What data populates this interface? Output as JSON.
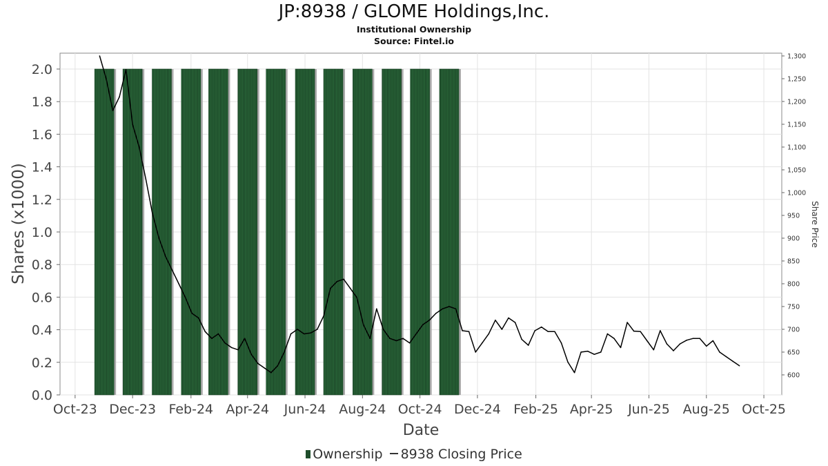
{
  "chart_data": {
    "type": "bar",
    "title": "JP:8938 / GLOME Holdings,Inc.",
    "subtitle": "Institutional Ownership",
    "source": "Source: Fintel.io",
    "xlabel": "Date",
    "ylabel": "Shares (x1000)",
    "y2label": "Share Price",
    "x_ticks": [
      "Oct-23",
      "Dec-23",
      "Feb-24",
      "Apr-24",
      "Jun-24",
      "Aug-24",
      "Oct-24",
      "Dec-24",
      "Feb-25",
      "Apr-25",
      "Jun-25",
      "Aug-25",
      "Oct-25"
    ],
    "y_ticks": [
      "0.0",
      "0.2",
      "0.4",
      "0.6",
      "0.8",
      "1.0",
      "1.2",
      "1.4",
      "1.6",
      "1.8",
      "2.0"
    ],
    "y2_ticks": [
      "600",
      "650",
      "700",
      "750",
      "800",
      "850",
      "900",
      "950",
      "1,000",
      "1,050",
      "1,100",
      "1,150",
      "1,200",
      "1,250",
      "1,300"
    ],
    "ylim": [
      0,
      2.1
    ],
    "y2lim": [
      585,
      1300
    ],
    "xlim": [
      "2023-09-15",
      "2025-10-20"
    ],
    "grid": true,
    "legend_position": "bottom",
    "colors": {
      "ownership": "#1e4d2b",
      "price": "#000000",
      "shadow": "#aaaaaa"
    },
    "series": [
      {
        "name": "Ownership",
        "kind": "bar",
        "x": [
          "2023-11-01",
          "2023-12-01",
          "2024-01-01",
          "2024-02-01",
          "2024-03-01",
          "2024-04-01",
          "2024-05-01",
          "2024-06-01",
          "2024-07-01",
          "2024-08-01",
          "2024-09-01",
          "2024-10-01",
          "2024-11-01"
        ],
        "values": [
          2.0,
          2.0,
          2.0,
          2.0,
          2.0,
          2.0,
          2.0,
          2.0,
          2.0,
          2.0,
          2.0,
          2.0,
          2.0
        ]
      },
      {
        "name": "8938 Closing Price",
        "kind": "line",
        "x": [
          "2023-10-27",
          "2023-11-03",
          "2023-11-10",
          "2023-11-17",
          "2023-11-24",
          "2023-12-01",
          "2023-12-08",
          "2023-12-15",
          "2023-12-22",
          "2023-12-29",
          "2024-01-05",
          "2024-01-12",
          "2024-01-19",
          "2024-01-26",
          "2024-02-02",
          "2024-02-09",
          "2024-02-16",
          "2024-02-23",
          "2024-03-01",
          "2024-03-08",
          "2024-03-15",
          "2024-03-22",
          "2024-03-29",
          "2024-04-05",
          "2024-04-12",
          "2024-04-19",
          "2024-04-26",
          "2024-05-03",
          "2024-05-10",
          "2024-05-17",
          "2024-05-24",
          "2024-05-31",
          "2024-06-07",
          "2024-06-14",
          "2024-06-21",
          "2024-06-28",
          "2024-07-05",
          "2024-07-12",
          "2024-07-19",
          "2024-07-26",
          "2024-08-02",
          "2024-08-09",
          "2024-08-16",
          "2024-08-23",
          "2024-08-30",
          "2024-09-06",
          "2024-09-13",
          "2024-09-20",
          "2024-09-27",
          "2024-10-04",
          "2024-10-11",
          "2024-10-18",
          "2024-10-25",
          "2024-11-01",
          "2024-11-08",
          "2024-11-15",
          "2024-11-22",
          "2024-11-29",
          "2024-12-06",
          "2024-12-13",
          "2024-12-20",
          "2024-12-27",
          "2025-01-03",
          "2025-01-10",
          "2025-01-17",
          "2025-01-24",
          "2025-01-31",
          "2025-02-07",
          "2025-02-14",
          "2025-02-21",
          "2025-02-28",
          "2025-03-07",
          "2025-03-14",
          "2025-03-21",
          "2025-03-28",
          "2025-04-04",
          "2025-04-11",
          "2025-04-18",
          "2025-04-25",
          "2025-05-02",
          "2025-05-09",
          "2025-05-16",
          "2025-05-23",
          "2025-05-30",
          "2025-06-06",
          "2025-06-13",
          "2025-06-20",
          "2025-06-27",
          "2025-07-04",
          "2025-07-11",
          "2025-07-18",
          "2025-07-25",
          "2025-08-01",
          "2025-08-08",
          "2025-08-15",
          "2025-08-22",
          "2025-08-29",
          "2025-09-05"
        ],
        "values": [
          1300,
          1250,
          1180,
          1210,
          1270,
          1150,
          1100,
          1030,
          955,
          900,
          860,
          830,
          800,
          770,
          735,
          725,
          695,
          680,
          690,
          670,
          660,
          655,
          680,
          645,
          625,
          615,
          605,
          620,
          650,
          690,
          700,
          690,
          692,
          700,
          730,
          790,
          805,
          810,
          790,
          770,
          710,
          680,
          745,
          700,
          680,
          675,
          680,
          670,
          690,
          710,
          720,
          735,
          745,
          750,
          745,
          697,
          695,
          650,
          670,
          690,
          720,
          700,
          725,
          715,
          678,
          665,
          697,
          705,
          695,
          695,
          670,
          628,
          605,
          650,
          652,
          645,
          650,
          690,
          680,
          660,
          715,
          696,
          695,
          675,
          655,
          697,
          668,
          653,
          668,
          676,
          680,
          680,
          663,
          675,
          650,
          640,
          630,
          620
        ]
      }
    ]
  }
}
